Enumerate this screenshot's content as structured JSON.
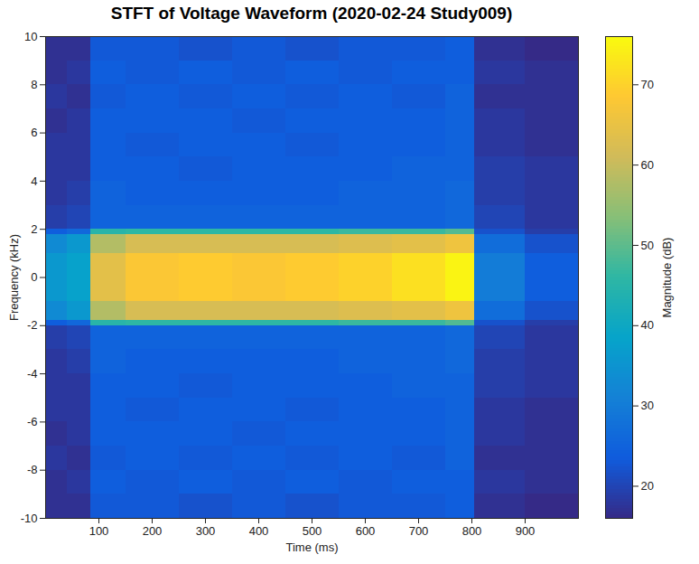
{
  "chart_data": {
    "type": "heatmap",
    "title": "STFT of Voltage Waveform (2020-02-24 Study009)",
    "x_label": "Time (ms)",
    "y_label": "Frequency (kHz)",
    "colorbar_label": "Magnitude (dB)",
    "xlim": [
      0,
      1000
    ],
    "xticks": [
      100,
      200,
      300,
      400,
      500,
      600,
      700,
      800,
      900
    ],
    "ylim": [
      -10,
      10
    ],
    "yticks": [
      -10,
      -8,
      -6,
      -4,
      -2,
      0,
      2,
      4,
      6,
      8,
      10
    ],
    "colorbar_range": [
      16,
      76
    ],
    "colorbar_ticks": [
      20,
      30,
      40,
      50,
      60,
      70
    ],
    "x_edges": [
      0,
      40,
      85,
      150,
      250,
      350,
      450,
      550,
      650,
      750,
      805,
      900,
      1000
    ],
    "y_edges": [
      -10,
      -9,
      -8,
      -7,
      -6,
      -5,
      -4,
      -3,
      -2,
      -1.8,
      -1,
      0,
      1,
      1.8,
      2,
      3,
      4,
      5,
      6,
      7,
      8,
      9,
      10
    ],
    "cells": [
      [
        17,
        17,
        23,
        23,
        22,
        23,
        22,
        23,
        23,
        24,
        17,
        16
      ],
      [
        17,
        18,
        24,
        23,
        24,
        23,
        24,
        23,
        24,
        24,
        18,
        17
      ],
      [
        18,
        17,
        23,
        24,
        23,
        24,
        23,
        24,
        23,
        25,
        17,
        17
      ],
      [
        17,
        18,
        24,
        24,
        24,
        23,
        24,
        24,
        24,
        25,
        18,
        17
      ],
      [
        18,
        18,
        24,
        23,
        24,
        24,
        23,
        24,
        24,
        25,
        18,
        17
      ],
      [
        18,
        18,
        24,
        24,
        23,
        24,
        24,
        24,
        25,
        25,
        19,
        18
      ],
      [
        18,
        19,
        25,
        24,
        24,
        24,
        24,
        25,
        25,
        26,
        19,
        18
      ],
      [
        19,
        20,
        25,
        25,
        25,
        25,
        25,
        25,
        25,
        26,
        20,
        18
      ],
      [
        24,
        26,
        45,
        46,
        46,
        46,
        46,
        47,
        47,
        49,
        22,
        19
      ],
      [
        33,
        36,
        58,
        62,
        62,
        62,
        62,
        63,
        64,
        66,
        27,
        22
      ],
      [
        36,
        38,
        64,
        68,
        69,
        68,
        69,
        70,
        72,
        75,
        30,
        24
      ],
      [
        36,
        38,
        64,
        68,
        69,
        68,
        69,
        70,
        72,
        75,
        30,
        24
      ],
      [
        33,
        36,
        58,
        62,
        62,
        62,
        62,
        63,
        64,
        66,
        27,
        22
      ],
      [
        24,
        26,
        45,
        46,
        46,
        46,
        46,
        47,
        47,
        49,
        22,
        19
      ],
      [
        19,
        20,
        25,
        25,
        25,
        25,
        25,
        25,
        25,
        26,
        20,
        18
      ],
      [
        18,
        19,
        25,
        24,
        24,
        24,
        24,
        25,
        25,
        26,
        19,
        18
      ],
      [
        18,
        18,
        24,
        24,
        23,
        24,
        24,
        24,
        25,
        25,
        19,
        18
      ],
      [
        18,
        18,
        24,
        23,
        24,
        24,
        23,
        24,
        24,
        25,
        18,
        17
      ],
      [
        17,
        18,
        24,
        24,
        24,
        23,
        24,
        24,
        24,
        25,
        18,
        17
      ],
      [
        18,
        17,
        23,
        24,
        23,
        24,
        23,
        24,
        23,
        25,
        17,
        17
      ],
      [
        17,
        18,
        24,
        23,
        24,
        23,
        24,
        23,
        24,
        24,
        18,
        17
      ],
      [
        17,
        17,
        23,
        23,
        22,
        23,
        22,
        23,
        23,
        24,
        17,
        16
      ]
    ]
  }
}
